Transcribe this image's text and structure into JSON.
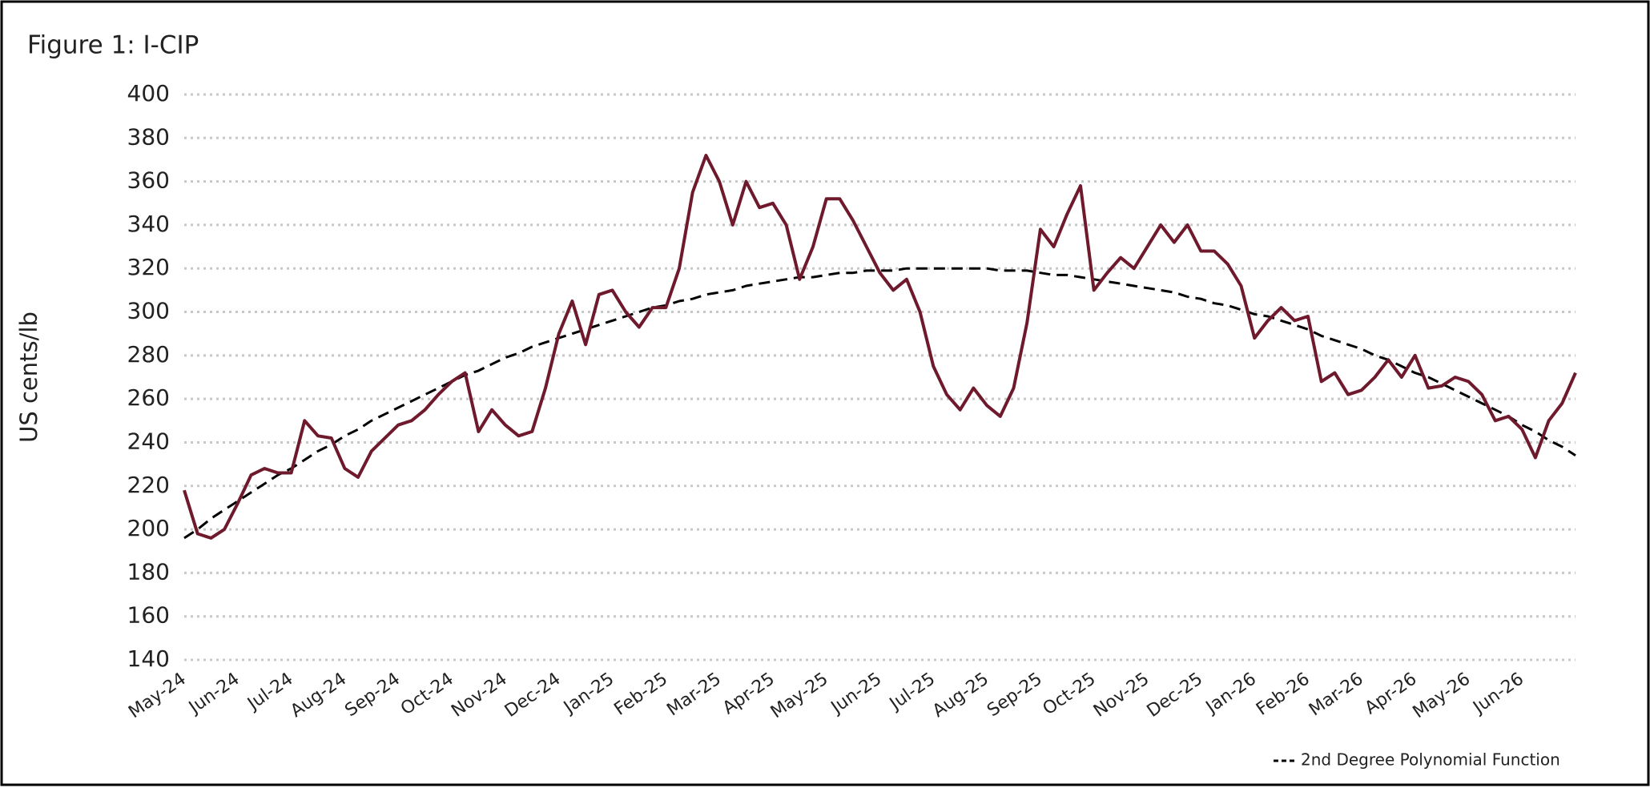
{
  "chart_data": {
    "type": "line",
    "title": "Figure 1: I-CIP",
    "y_label": "US cents/lb",
    "categories": [
      "May-24",
      null,
      null,
      null,
      "Jun-24",
      null,
      null,
      null,
      "Jul-24",
      null,
      null,
      null,
      "Aug-24",
      null,
      null,
      null,
      "Sep-24",
      null,
      null,
      null,
      "Oct-24",
      null,
      null,
      null,
      "Nov-24",
      null,
      null,
      null,
      "Dec-24",
      null,
      null,
      null,
      "Jan-25",
      null,
      null,
      null,
      "Feb-25",
      null,
      null,
      null,
      "Mar-25",
      null,
      null,
      null,
      "Apr-25",
      null,
      null,
      null,
      "May-25",
      null,
      null,
      null,
      "Jun-25",
      null,
      null,
      null,
      "Jul-25",
      null,
      null,
      null,
      "Aug-25",
      null,
      null,
      null,
      "Sep-25",
      null,
      null,
      null,
      "Oct-25",
      null,
      null,
      null,
      "Nov-25",
      null,
      null,
      null,
      "Dec-25",
      null,
      null,
      null,
      "Jan-26",
      null,
      null,
      null,
      "Feb-26",
      null,
      null,
      null,
      "Mar-26",
      null,
      null,
      null,
      "Apr-26",
      null,
      null,
      null,
      "May-26",
      null,
      null,
      null,
      "Jun-26",
      null,
      null,
      null,
      null
    ],
    "series": [
      {
        "color": "#6e1a2c",
        "values": [
          218,
          198,
          196,
          200,
          212,
          225,
          228,
          226,
          226,
          250,
          243,
          242,
          228,
          224,
          236,
          242,
          248,
          250,
          255,
          262,
          268,
          272,
          245,
          255,
          248,
          243,
          245,
          265,
          290,
          305,
          285,
          308,
          310,
          300,
          293,
          302,
          302,
          320,
          355,
          372,
          360,
          340,
          360,
          348,
          350,
          340,
          315,
          330,
          352,
          352,
          342,
          330,
          318,
          310,
          315,
          300,
          275,
          262,
          255,
          265,
          257,
          252,
          265,
          295,
          338,
          330,
          345,
          358,
          310,
          318,
          325,
          320,
          330,
          340,
          332,
          340,
          328,
          328,
          322,
          312,
          288,
          296,
          302,
          296,
          298,
          268,
          272,
          262,
          264,
          270,
          278,
          270,
          280,
          265,
          266,
          270,
          268,
          262,
          250,
          252,
          246,
          233,
          250,
          258,
          272
        ]
      },
      {
        "name": "2nd Degree Polynomial Function",
        "color": "#000000",
        "dashed": true,
        "values": [
          196,
          200,
          205,
          209,
          213,
          217,
          221,
          225,
          228,
          232,
          236,
          239,
          243,
          246,
          250,
          253,
          256,
          259,
          262,
          265,
          268,
          271,
          273,
          276,
          279,
          281,
          284,
          286,
          288,
          290,
          292,
          294,
          296,
          298,
          300,
          302,
          303,
          305,
          306,
          308,
          309,
          310,
          312,
          313,
          314,
          315,
          316,
          316,
          317,
          318,
          318,
          319,
          319,
          319,
          320,
          320,
          320,
          320,
          320,
          320,
          320,
          319,
          319,
          319,
          318,
          317,
          317,
          316,
          315,
          314,
          313,
          312,
          311,
          310,
          309,
          307,
          306,
          304,
          303,
          301,
          299,
          298,
          296,
          294,
          292,
          289,
          287,
          285,
          283,
          280,
          278,
          275,
          272,
          270,
          267,
          264,
          261,
          258,
          255,
          252,
          248,
          245,
          241,
          238,
          234
        ]
      }
    ],
    "ylim": [
      140,
      400
    ],
    "yticks": [
      140,
      160,
      180,
      200,
      220,
      240,
      260,
      280,
      300,
      320,
      340,
      360,
      380,
      400
    ],
    "grid": true,
    "legend": "bottom-right"
  }
}
